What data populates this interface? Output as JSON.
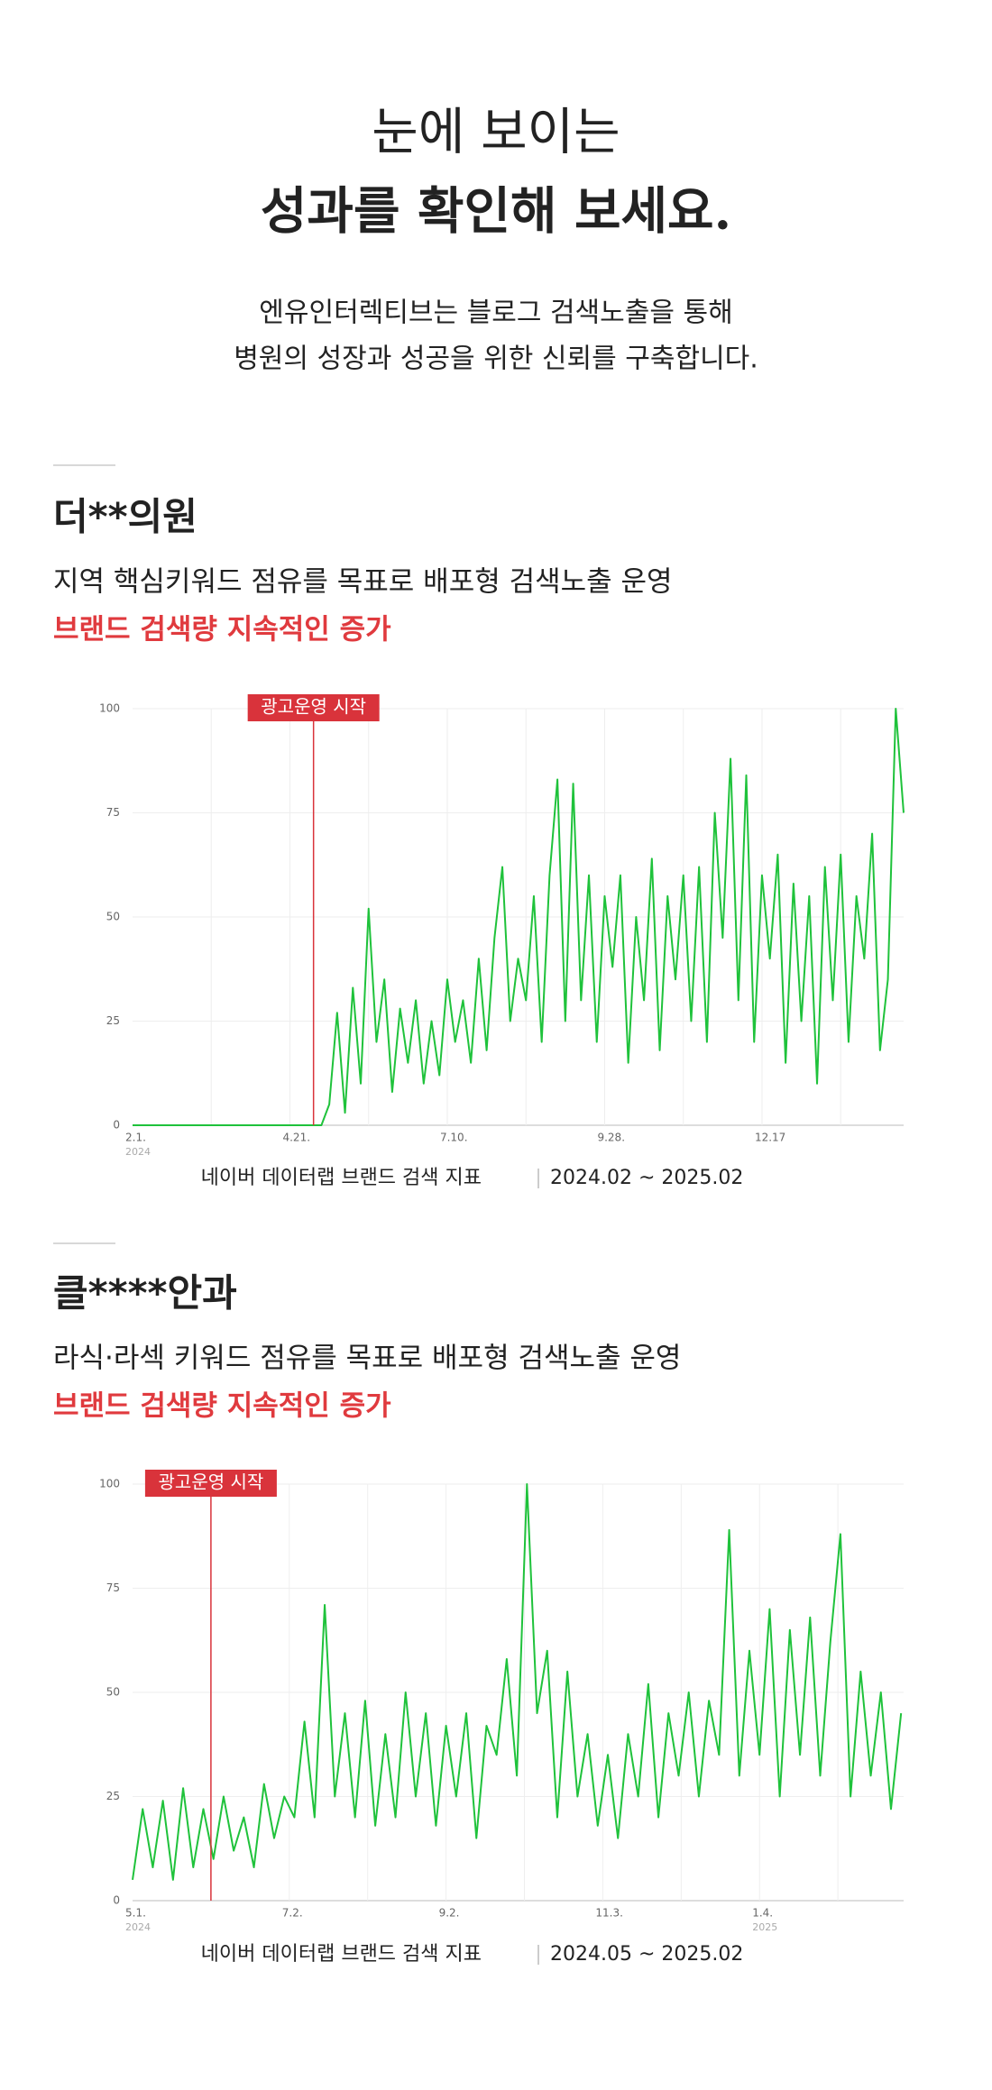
{
  "header": {
    "title_lines": [
      "눈에 보이는",
      "성과를 확인해 보세요."
    ],
    "description_lines": [
      "엔유인터렉티브는 블로그 검색노출을 통해",
      "병원의 성장과 성공을 위한 신뢰를 구축합니다."
    ]
  },
  "cases": [
    {
      "name": "더**의원",
      "description": "지역 핵심키워드 점유를 목표로 배포형 검색노출 운영",
      "highlight": "브랜드 검색량 지속적인 증가",
      "source": "네이버 데이터랩 브랜드 검색 지표",
      "period": "2024.02 ~ 2025.02"
    },
    {
      "name": "클****안과",
      "description": "라식·라섹 키워드 점유를 목표로 배포형 검색노출 운영",
      "highlight": "브랜드 검색량 지속적인 증가",
      "source": "네이버 데이터랩 브랜드 검색 지표",
      "period": "2024.05 ~ 2025.02"
    }
  ],
  "chart_data": [
    {
      "type": "line",
      "color": "#1fc23b",
      "grid": true,
      "x": [
        0,
        4,
        8,
        12,
        16,
        20,
        24,
        28,
        32,
        36,
        40,
        44,
        48,
        52,
        56,
        60,
        64,
        68,
        72,
        76,
        80,
        84,
        88,
        92,
        96,
        100,
        104,
        108,
        112,
        116,
        120,
        124,
        128,
        132,
        136,
        140,
        144,
        148,
        152,
        156,
        160,
        164,
        168,
        172,
        176,
        180,
        184,
        188,
        192,
        196,
        200,
        204,
        208,
        212,
        216,
        220,
        224,
        228,
        232,
        236,
        240,
        244,
        248,
        252,
        256,
        260,
        264,
        268,
        272,
        276,
        280,
        284,
        288,
        292,
        296,
        300,
        304,
        308,
        312,
        316,
        320,
        324,
        328,
        332,
        336,
        340,
        344,
        348,
        352,
        356,
        360,
        364,
        368,
        372,
        376,
        380,
        384,
        388,
        392
      ],
      "values": [
        0,
        0,
        0,
        0,
        0,
        0,
        0,
        0,
        0,
        0,
        0,
        0,
        0,
        0,
        0,
        0,
        0,
        0,
        0,
        0,
        0,
        0,
        0,
        0,
        0,
        5,
        27,
        3,
        33,
        10,
        52,
        20,
        35,
        8,
        28,
        15,
        30,
        10,
        25,
        12,
        35,
        20,
        30,
        15,
        40,
        18,
        45,
        62,
        25,
        40,
        30,
        55,
        20,
        60,
        83,
        25,
        82,
        30,
        60,
        20,
        55,
        38,
        60,
        15,
        50,
        30,
        64,
        18,
        55,
        35,
        60,
        25,
        62,
        20,
        75,
        45,
        88,
        30,
        84,
        20,
        60,
        40,
        65,
        15,
        58,
        25,
        55,
        10,
        62,
        30,
        65,
        20,
        55,
        40,
        70,
        18,
        35,
        100,
        75
      ],
      "xlim": [
        0,
        392
      ],
      "ylim": [
        0,
        100
      ],
      "yticks": [
        0,
        25,
        50,
        75,
        100
      ],
      "xticks": [
        {
          "value": 0,
          "label": "2.1."
        },
        {
          "value": 80,
          "label": "4.21."
        },
        {
          "value": 160,
          "label": "7.10."
        },
        {
          "value": 240,
          "label": "9.28."
        },
        {
          "value": 320,
          "label": "12.17"
        }
      ],
      "xgrid": [
        40,
        80,
        120,
        160,
        200,
        240,
        280,
        320,
        360
      ],
      "year_labels": [
        {
          "value": 0,
          "label": "2024"
        }
      ],
      "annotations": [
        {
          "x": 92,
          "label": "광고운영 시작",
          "color": "#d9333b"
        }
      ]
    },
    {
      "type": "line",
      "color": "#1fc23b",
      "grid": true,
      "x": [
        0,
        4,
        8,
        12,
        16,
        20,
        24,
        28,
        32,
        36,
        40,
        44,
        48,
        52,
        56,
        60,
        64,
        68,
        72,
        76,
        80,
        84,
        88,
        92,
        96,
        100,
        104,
        108,
        112,
        116,
        120,
        124,
        128,
        132,
        136,
        140,
        144,
        148,
        152,
        156,
        160,
        164,
        168,
        172,
        176,
        180,
        184,
        188,
        192,
        196,
        200,
        204,
        208,
        212,
        216,
        220,
        224,
        228,
        232,
        236,
        240,
        244,
        248,
        252,
        256,
        260,
        264,
        268,
        272,
        276,
        280,
        284,
        288,
        292,
        296,
        300,
        304
      ],
      "values": [
        5,
        22,
        8,
        24,
        5,
        27,
        8,
        22,
        10,
        25,
        12,
        20,
        8,
        28,
        15,
        25,
        20,
        43,
        20,
        71,
        25,
        45,
        20,
        48,
        18,
        40,
        20,
        50,
        25,
        45,
        18,
        42,
        25,
        45,
        15,
        42,
        35,
        58,
        30,
        100,
        45,
        60,
        20,
        55,
        25,
        40,
        18,
        35,
        15,
        40,
        25,
        52,
        20,
        45,
        30,
        50,
        25,
        48,
        35,
        89,
        30,
        60,
        35,
        70,
        25,
        65,
        35,
        68,
        30,
        62,
        88,
        25,
        55,
        30,
        50,
        22,
        45
      ],
      "xlim": [
        0,
        305
      ],
      "ylim": [
        0,
        100
      ],
      "yticks": [
        0,
        25,
        50,
        75,
        100
      ],
      "xticks": [
        {
          "value": 0,
          "label": "5.1."
        },
        {
          "value": 62,
          "label": "7.2."
        },
        {
          "value": 124,
          "label": "9.2."
        },
        {
          "value": 186,
          "label": "11.3."
        },
        {
          "value": 248,
          "label": "1.4."
        }
      ],
      "xgrid": [
        31,
        62,
        93,
        124,
        155,
        186,
        217,
        248,
        279
      ],
      "year_labels": [
        {
          "value": 0,
          "label": "2024"
        },
        {
          "value": 248,
          "label": "2025"
        }
      ],
      "annotations": [
        {
          "x": 31,
          "label": "광고운영 시작",
          "color": "#d9333b"
        }
      ]
    }
  ]
}
